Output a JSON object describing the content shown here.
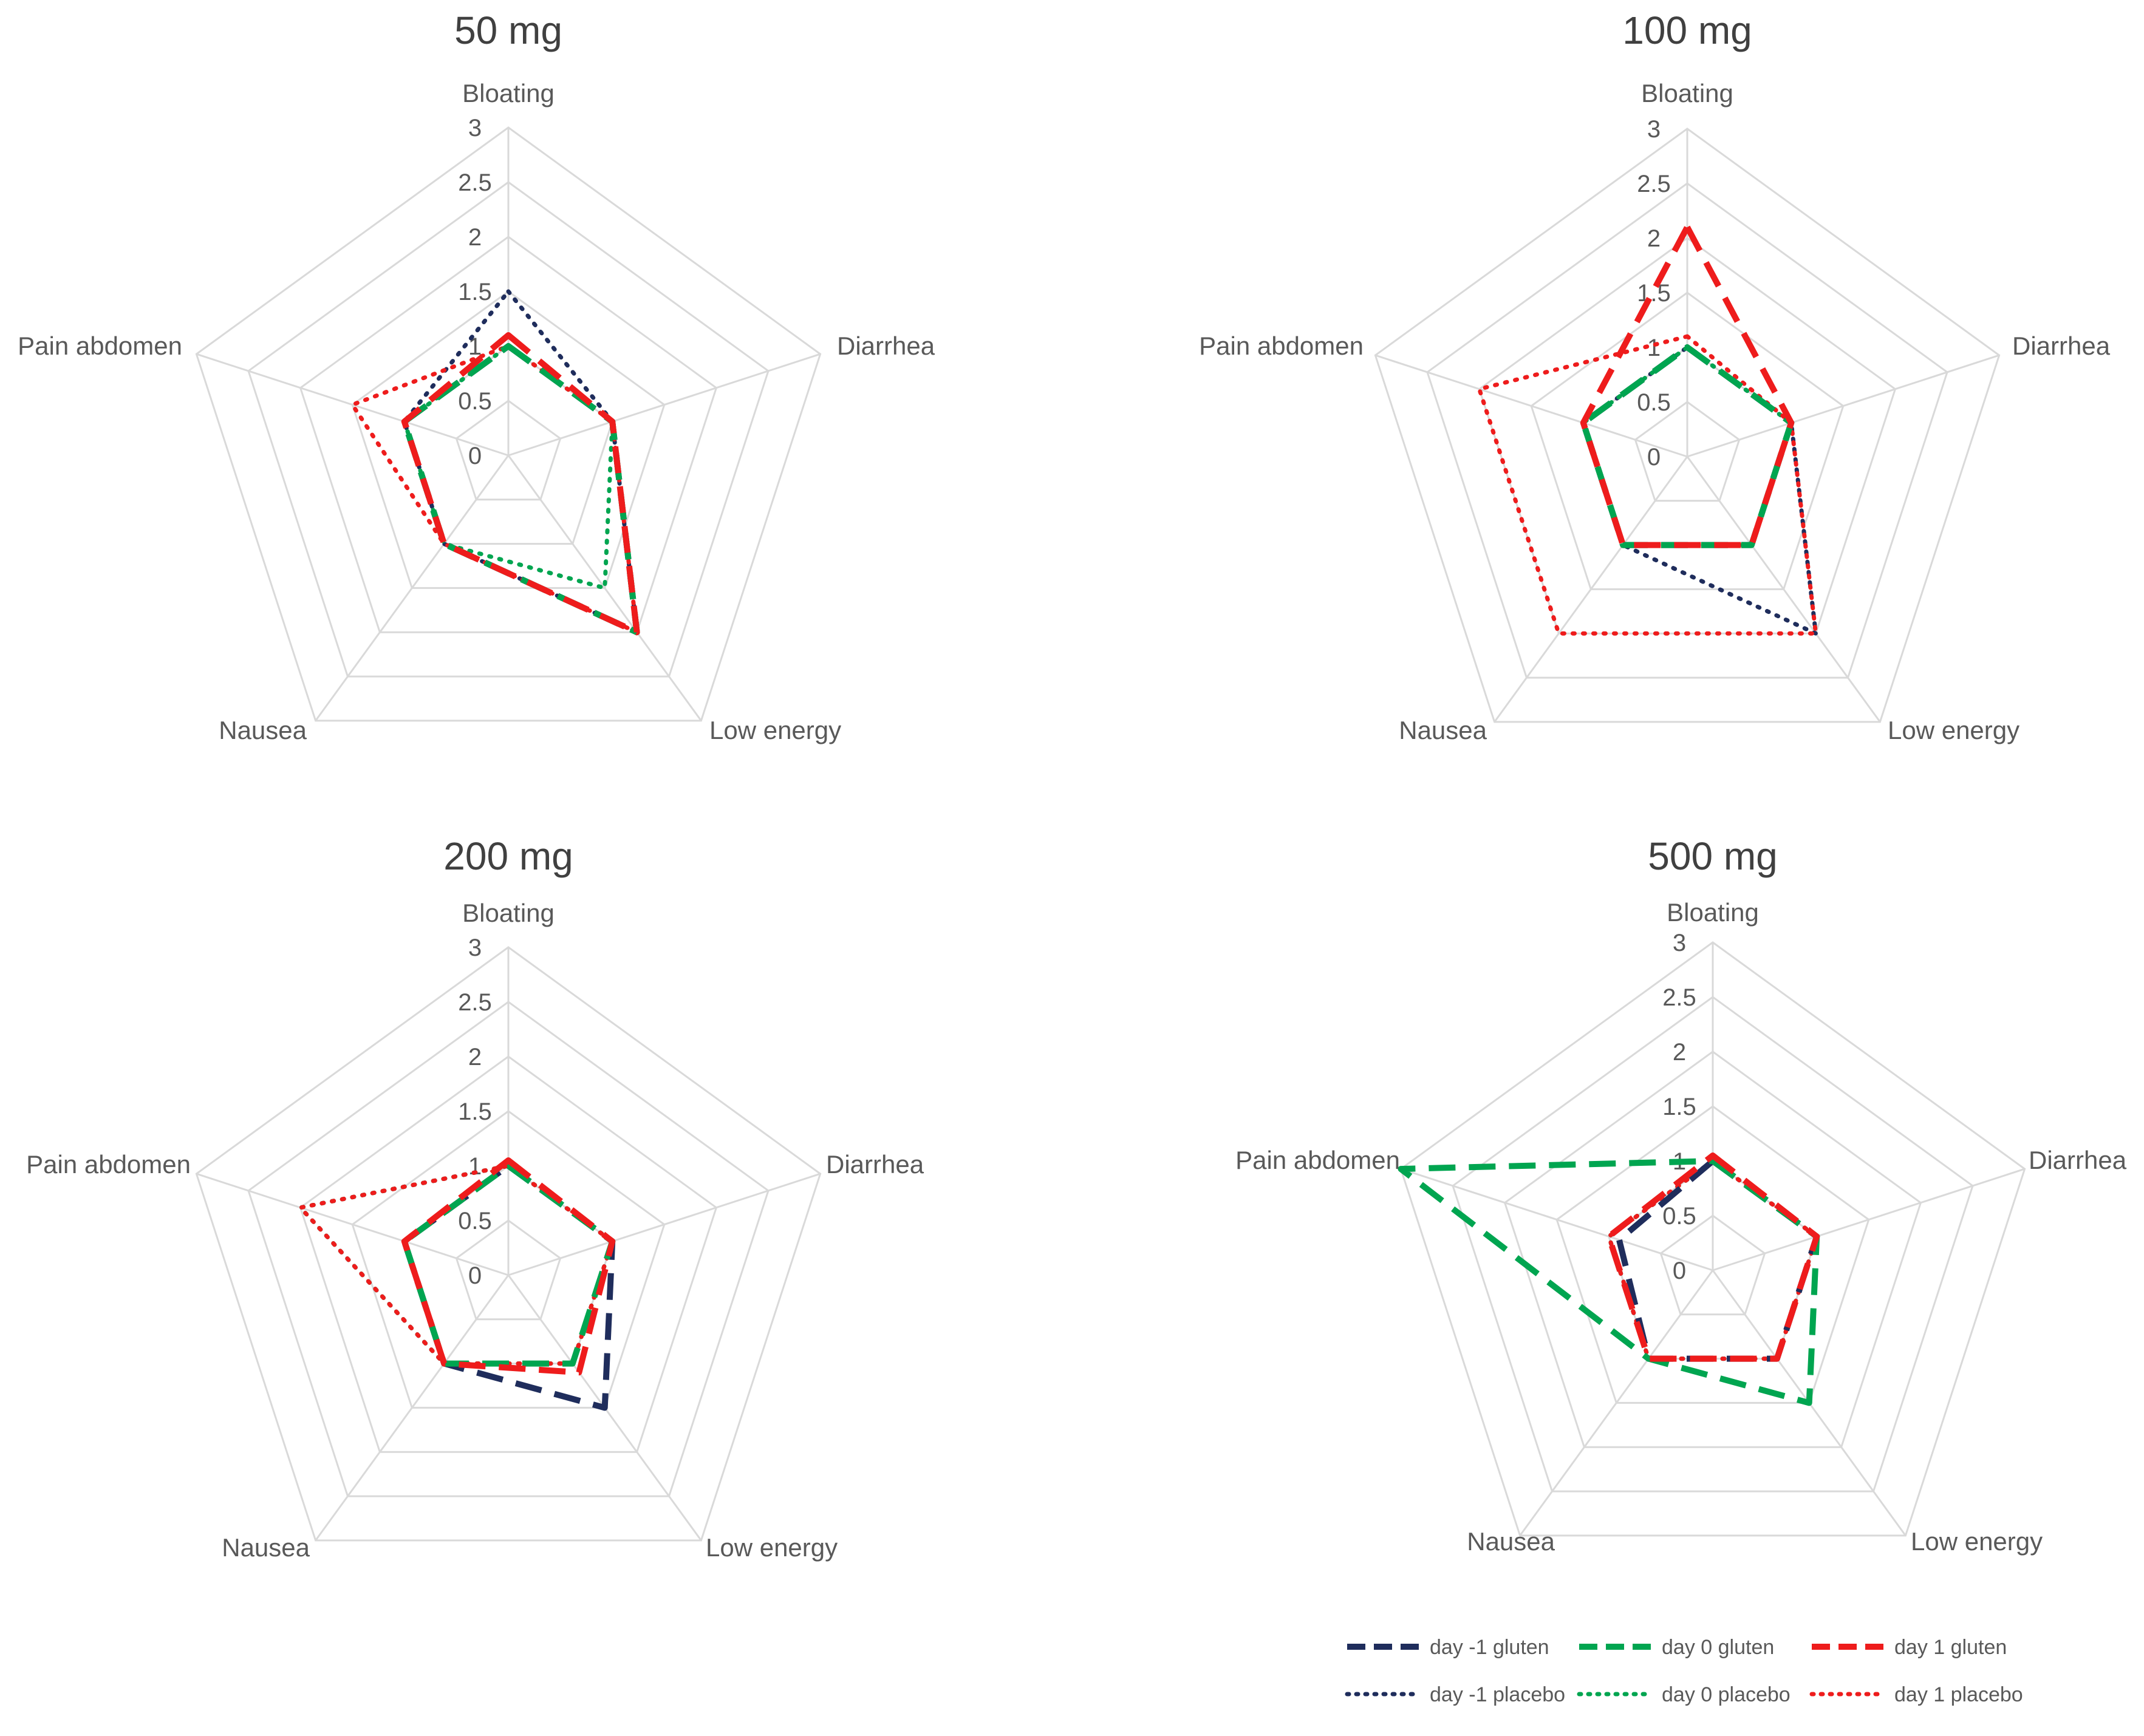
{
  "series_styles": [
    {
      "key": "d_m1_gluten",
      "color": "#1f2d5c",
      "dash": "long"
    },
    {
      "key": "d_0_gluten",
      "color": "#00a550",
      "dash": "long"
    },
    {
      "key": "d_1_gluten",
      "color": "#ee1c1c",
      "dash": "long"
    },
    {
      "key": "d_m1_placebo",
      "color": "#1f2d5c",
      "dash": "dot"
    },
    {
      "key": "d_0_placebo",
      "color": "#00a550",
      "dash": "dot"
    },
    {
      "key": "d_1_placebo",
      "color": "#ee1c1c",
      "dash": "dot"
    }
  ],
  "legend": {
    "items": [
      "day -1 gluten",
      "day 0 gluten",
      "day 1 gluten",
      "day -1 placebo",
      "day 0 placebo",
      "day 1 placebo"
    ]
  },
  "chart_data": [
    {
      "type": "radar",
      "title": "50 mg",
      "axes": [
        "Bloating",
        "Diarrhea",
        "Low energy",
        "Nausea",
        "Pain abdomen"
      ],
      "ticks": [
        "0",
        "0.5",
        "1",
        "1.5",
        "2",
        "2.5",
        "3"
      ],
      "range": [
        0,
        3
      ],
      "series": [
        {
          "name": "day -1 gluten",
          "values": [
            1.0,
            1.0,
            2.0,
            1.0,
            1.0
          ]
        },
        {
          "name": "day 0 gluten",
          "values": [
            1.0,
            1.0,
            2.0,
            1.0,
            1.0
          ]
        },
        {
          "name": "day 1 gluten",
          "values": [
            1.1,
            1.0,
            2.0,
            1.0,
            1.0
          ]
        },
        {
          "name": "day -1 placebo",
          "values": [
            1.5,
            1.0,
            2.0,
            1.0,
            1.0
          ]
        },
        {
          "name": "day 0 placebo",
          "values": [
            1.0,
            1.0,
            1.5,
            1.0,
            1.0
          ]
        },
        {
          "name": "day 1 placebo",
          "values": [
            1.0,
            1.0,
            2.0,
            1.0,
            1.5
          ]
        }
      ]
    },
    {
      "type": "radar",
      "title": "100 mg",
      "axes": [
        "Bloating",
        "Diarrhea",
        "Low energy",
        "Nausea",
        "Pain abdomen"
      ],
      "ticks": [
        "0",
        "0.5",
        "1",
        "1.5",
        "2",
        "2.5",
        "3"
      ],
      "range": [
        0,
        3
      ],
      "series": [
        {
          "name": "day -1 gluten",
          "values": [
            1.0,
            1.0,
            1.0,
            1.0,
            1.0
          ]
        },
        {
          "name": "day 0 gluten",
          "values": [
            1.0,
            1.0,
            1.0,
            1.0,
            1.0
          ]
        },
        {
          "name": "day 1 gluten",
          "values": [
            2.1,
            1.0,
            1.0,
            1.0,
            1.0
          ]
        },
        {
          "name": "day -1 placebo",
          "values": [
            1.0,
            1.0,
            2.0,
            1.0,
            1.0
          ]
        },
        {
          "name": "day 0 placebo",
          "values": [
            1.0,
            1.0,
            1.0,
            1.0,
            1.0
          ]
        },
        {
          "name": "day 1 placebo",
          "values": [
            1.1,
            1.0,
            2.0,
            2.0,
            2.0
          ]
        }
      ]
    },
    {
      "type": "radar",
      "title": "200 mg",
      "axes": [
        "Bloating",
        "Diarrhea",
        "Low energy",
        "Nausea",
        "Pain abdomen"
      ],
      "ticks": [
        "0",
        "0.5",
        "1",
        "1.5",
        "2",
        "2.5",
        "3"
      ],
      "range": [
        0,
        3
      ],
      "series": [
        {
          "name": "day -1 gluten",
          "values": [
            1.0,
            1.0,
            1.5,
            1.0,
            1.0
          ]
        },
        {
          "name": "day 0 gluten",
          "values": [
            1.0,
            1.0,
            1.0,
            1.0,
            1.0
          ]
        },
        {
          "name": "day 1 gluten",
          "values": [
            1.05,
            1.0,
            1.1,
            1.0,
            1.0
          ]
        },
        {
          "name": "day -1 placebo",
          "values": [
            1.0,
            1.0,
            1.0,
            1.0,
            2.0
          ]
        },
        {
          "name": "day 0 placebo",
          "values": [
            1.0,
            1.0,
            1.0,
            1.0,
            2.0
          ]
        },
        {
          "name": "day 1 placebo",
          "values": [
            1.0,
            1.0,
            1.0,
            1.0,
            2.0
          ]
        }
      ]
    },
    {
      "type": "radar",
      "title": "500 mg",
      "axes": [
        "Bloating",
        "Diarrhea",
        "Low energy",
        "Nausea",
        "Pain abdomen"
      ],
      "ticks": [
        "0",
        "0.5",
        "1",
        "1.5",
        "2",
        "2.5",
        "3"
      ],
      "range": [
        0,
        3
      ],
      "series": [
        {
          "name": "day -1 gluten",
          "values": [
            1.0,
            1.0,
            1.0,
            1.0,
            0.9
          ]
        },
        {
          "name": "day 0 gluten",
          "values": [
            1.0,
            1.0,
            1.5,
            1.0,
            3.0
          ]
        },
        {
          "name": "day 1 gluten",
          "values": [
            1.05,
            1.0,
            1.0,
            1.0,
            1.0
          ]
        },
        {
          "name": "day -1 placebo",
          "values": [
            1.0,
            1.0,
            1.0,
            1.0,
            1.0
          ]
        },
        {
          "name": "day 0 placebo",
          "values": [
            1.0,
            1.0,
            1.0,
            1.0,
            1.0
          ]
        },
        {
          "name": "day 1 placebo",
          "values": [
            1.0,
            1.0,
            1.0,
            1.0,
            1.0
          ]
        }
      ]
    }
  ]
}
